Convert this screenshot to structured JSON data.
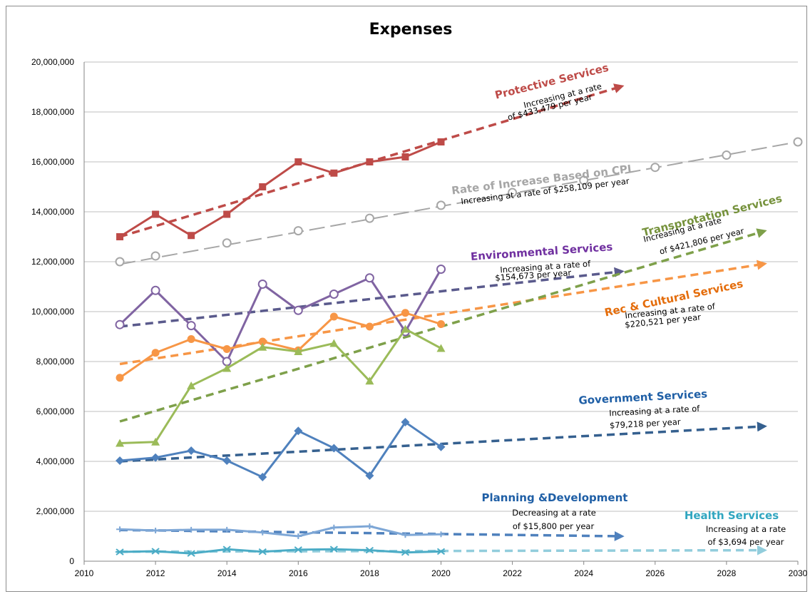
{
  "chart_data": {
    "type": "line",
    "title": "Expenses",
    "xlabel": "",
    "ylabel": "",
    "xlim": [
      2010,
      2030
    ],
    "ylim": [
      0,
      20000000
    ],
    "x_ticks": [
      "2010",
      "2012",
      "2014",
      "2016",
      "2018",
      "2020",
      "2022",
      "2024",
      "2026",
      "2028",
      "2030"
    ],
    "y_ticks": [
      "0",
      "2,000,000",
      "4,000,000",
      "6,000,000",
      "8,000,000",
      "10,000,000",
      "12,000,000",
      "14,000,000",
      "16,000,000",
      "18,000,000",
      "20,000,000"
    ],
    "grid": "horizontal",
    "series": [
      {
        "name": "Protective Services",
        "color": "#be4b48",
        "marker": "square",
        "x": [
          2011,
          2012,
          2013,
          2014,
          2015,
          2016,
          2017,
          2018,
          2019,
          2020
        ],
        "values": [
          13000000,
          13900000,
          13050000,
          13900000,
          15000000,
          16000000,
          15550000,
          16000000,
          16200000,
          16800000
        ]
      },
      {
        "name": "Rate of Increase Based on CPI",
        "color": "#a6a6a6",
        "marker": "open-circle",
        "x": [
          2011,
          2012,
          2014,
          2016,
          2018,
          2020,
          2022,
          2024,
          2026,
          2028,
          2030
        ],
        "values": [
          12000000,
          12230000,
          12750000,
          13240000,
          13740000,
          14260000,
          14770000,
          15260000,
          15780000,
          16270000,
          16800000
        ]
      },
      {
        "name": "Environmental Services",
        "color": "#8064a2",
        "marker": "open-circle",
        "x": [
          2011,
          2012,
          2013,
          2014,
          2015,
          2016,
          2017,
          2018,
          2019,
          2020
        ],
        "values": [
          9480000,
          10850000,
          9440000,
          8000000,
          11100000,
          10050000,
          10700000,
          11350000,
          9200000,
          11700000
        ]
      },
      {
        "name": "Rec & Cultural Services",
        "color": "#f79646",
        "marker": "circle",
        "x": [
          2011,
          2012,
          2013,
          2014,
          2015,
          2016,
          2017,
          2018,
          2019,
          2020
        ],
        "values": [
          7350000,
          8350000,
          8900000,
          8500000,
          8800000,
          8450000,
          9800000,
          9400000,
          9950000,
          9500000
        ]
      },
      {
        "name": "Transprotation Services",
        "color": "#9bbb59",
        "marker": "triangle",
        "x": [
          2011,
          2012,
          2013,
          2014,
          2015,
          2016,
          2017,
          2018,
          2019,
          2020
        ],
        "values": [
          4730000,
          4780000,
          7030000,
          7730000,
          8580000,
          8400000,
          8730000,
          7220000,
          9300000,
          8530000
        ]
      },
      {
        "name": "Government Services",
        "color": "#4f81bd",
        "marker": "diamond",
        "x": [
          2011,
          2012,
          2013,
          2014,
          2015,
          2016,
          2017,
          2018,
          2019,
          2020
        ],
        "values": [
          4030000,
          4150000,
          4430000,
          4030000,
          3370000,
          5220000,
          4530000,
          3430000,
          5570000,
          4580000
        ]
      },
      {
        "name": "Planning &Development",
        "color": "#7ea7d6",
        "marker": "cross",
        "x": [
          2011,
          2012,
          2013,
          2014,
          2015,
          2016,
          2017,
          2018,
          2019,
          2020
        ],
        "values": [
          1280000,
          1230000,
          1260000,
          1260000,
          1150000,
          1000000,
          1350000,
          1400000,
          1050000,
          1080000
        ]
      },
      {
        "name": "Health Services",
        "color": "#4bacc6",
        "marker": "star",
        "x": [
          2011,
          2012,
          2013,
          2014,
          2015,
          2016,
          2017,
          2018,
          2019,
          2020
        ],
        "values": [
          370000,
          400000,
          310000,
          480000,
          380000,
          460000,
          480000,
          440000,
          350000,
          390000
        ]
      }
    ],
    "trendlines": [
      {
        "series": "Protective Services",
        "color": "#be4b48",
        "x": [
          2011,
          2025
        ],
        "values": [
          13000000,
          19000000
        ]
      },
      {
        "series": "Rate of Increase Based on CPI",
        "color": "#a6a6a6",
        "x": [
          2011,
          2030
        ],
        "values": [
          11900000,
          16800000
        ]
      },
      {
        "series": "Environmental Services",
        "color": "#5a5a8c",
        "x": [
          2011,
          2025
        ],
        "values": [
          9400000,
          11600000
        ]
      },
      {
        "series": "Rec & Cultural Services",
        "color": "#f79646",
        "x": [
          2011,
          2029
        ],
        "values": [
          7900000,
          11900000
        ]
      },
      {
        "series": "Transprotation Services",
        "color": "#7ea04a",
        "x": [
          2011,
          2029
        ],
        "values": [
          5600000,
          13200000
        ]
      },
      {
        "series": "Government Services",
        "color": "#35608f",
        "x": [
          2011,
          2029
        ],
        "values": [
          4000000,
          5400000
        ]
      },
      {
        "series": "Planning &Development",
        "color": "#4f81bd",
        "x": [
          2011,
          2025
        ],
        "values": [
          1250000,
          1000000
        ]
      },
      {
        "series": "Health Services",
        "color": "#92cddc",
        "x": [
          2011,
          2029
        ],
        "values": [
          380000,
          440000
        ]
      }
    ],
    "annotations": [
      {
        "title": "Protective Services",
        "lines": [
          "Increasing at a rate",
          "of  $433,479 per year"
        ]
      },
      {
        "title": "Rate of Increase Based on CPI",
        "lines": [
          "Increasing at a rate of  $258,109 per year"
        ]
      },
      {
        "title": "Transprotation Services",
        "lines": [
          "Increasing at a rate",
          "of  $421,806 per year"
        ]
      },
      {
        "title": "Environmental Services",
        "lines": [
          "Increasing at a rate of",
          "$154,673 per year"
        ]
      },
      {
        "title": "Rec & Cultural Services",
        "lines": [
          "Increasing at a rate of",
          "$220,521 per year"
        ]
      },
      {
        "title": "Government Services",
        "lines": [
          "Increasing at a rate of",
          "$79,218 per year"
        ]
      },
      {
        "title": "Planning &Development",
        "lines": [
          "Decreasing at a rate",
          "of  $15,800 per year"
        ]
      },
      {
        "title": "Health Services",
        "lines": [
          "Increasing at a rate",
          "of  $3,694 per year"
        ]
      }
    ]
  }
}
